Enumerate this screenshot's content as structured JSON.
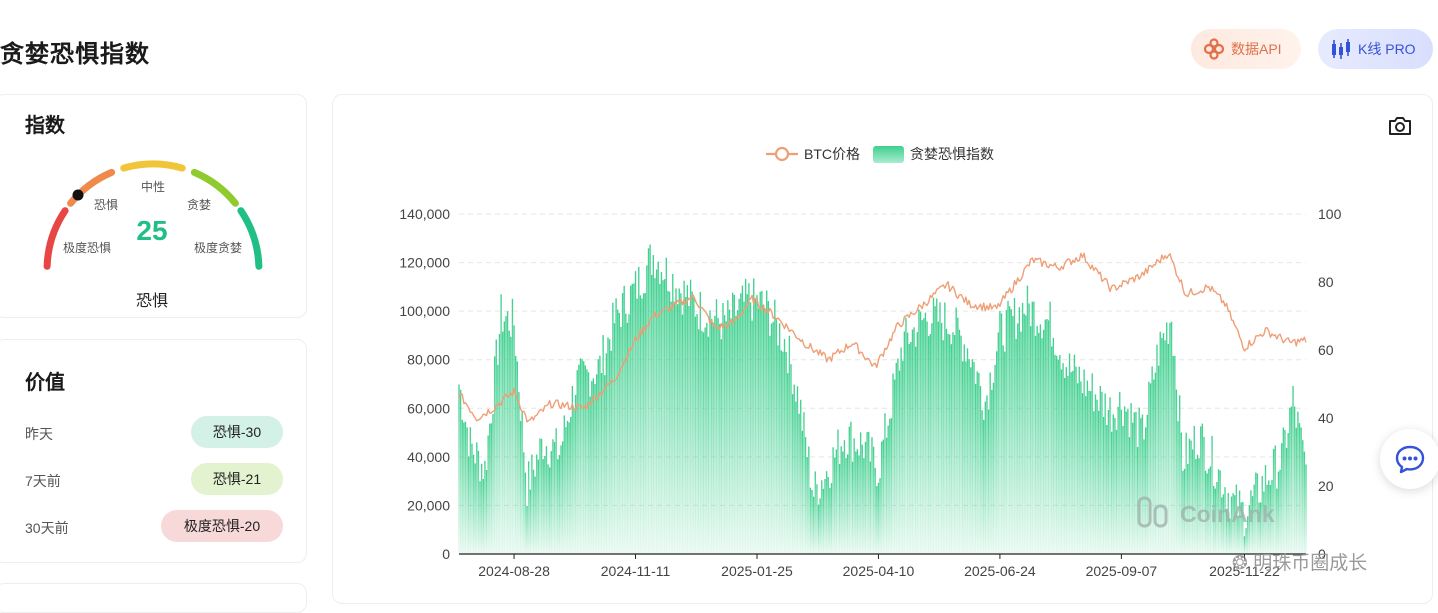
{
  "header": {
    "title": "贪婪恐惧指数",
    "api_button": "数据API",
    "kline_button": "K线 PRO"
  },
  "index_card": {
    "title": "指数",
    "value": "25",
    "status": "恐惧",
    "labels": {
      "extreme_fear": "极度恐惧",
      "fear": "恐惧",
      "neutral": "中性",
      "greed": "贪婪",
      "extreme_greed": "极度贪婪"
    },
    "colors": {
      "extreme_fear": "#e84545",
      "fear": "#ef8a4c",
      "neutral": "#f0c53a",
      "greed": "#8fca2e",
      "extreme_greed": "#1fbf86"
    }
  },
  "value_card": {
    "title": "价值",
    "rows": [
      {
        "label": "昨天",
        "value": "恐惧-30",
        "color": "#d3f1e6"
      },
      {
        "label": "7天前",
        "value": "恐惧-21",
        "color": "#e3f2cf"
      },
      {
        "label": "30天前",
        "value": "极度恐惧-20",
        "color": "#f8d9d9"
      }
    ]
  },
  "chart_data": {
    "type": "bar+line",
    "legend": [
      {
        "name": "BTC价格",
        "color": "#ee9f77"
      },
      {
        "name": "贪婪恐惧指数",
        "color": "#4fd49a"
      }
    ],
    "legend_position": "top-center",
    "grid": "horizontal-dashed",
    "x_ticks": [
      "2024-08-28",
      "2024-11-11",
      "2025-01-25",
      "2025-04-10",
      "2025-06-24",
      "2025-09-07",
      "2025-11-22"
    ],
    "y_left_ticks": [
      "0",
      "20,000",
      "40,000",
      "60,000",
      "80,000",
      "100,000",
      "120,000",
      "140,000"
    ],
    "y_right_ticks": [
      "0",
      "20",
      "40",
      "60",
      "80",
      "100"
    ],
    "y_left_range": [
      0,
      140000
    ],
    "y_right_range": [
      0,
      100
    ],
    "x_range": [
      "2024-07-25",
      "2025-12-30"
    ],
    "fear_greed_anchors": [
      [
        "2024-07-25",
        50
      ],
      [
        "2024-08-01",
        32
      ],
      [
        "2024-08-10",
        25
      ],
      [
        "2024-08-20",
        70
      ],
      [
        "2024-08-28",
        68
      ],
      [
        "2024-09-05",
        20
      ],
      [
        "2024-09-15",
        33
      ],
      [
        "2024-09-25",
        30
      ],
      [
        "2024-10-05",
        50
      ],
      [
        "2024-10-20",
        55
      ],
      [
        "2024-10-30",
        70
      ],
      [
        "2024-11-11",
        78
      ],
      [
        "2024-11-22",
        88
      ],
      [
        "2024-12-05",
        80
      ],
      [
        "2024-12-20",
        72
      ],
      [
        "2025-01-05",
        68
      ],
      [
        "2025-01-20",
        75
      ],
      [
        "2025-01-30",
        73
      ],
      [
        "2025-02-12",
        62
      ],
      [
        "2025-02-20",
        45
      ],
      [
        "2025-03-01",
        18
      ],
      [
        "2025-03-10",
        25
      ],
      [
        "2025-03-20",
        35
      ],
      [
        "2025-04-01",
        32
      ],
      [
        "2025-04-10",
        25
      ],
      [
        "2025-04-25",
        62
      ],
      [
        "2025-05-10",
        70
      ],
      [
        "2025-05-25",
        68
      ],
      [
        "2025-06-05",
        60
      ],
      [
        "2025-06-15",
        45
      ],
      [
        "2025-06-24",
        65
      ],
      [
        "2025-07-10",
        73
      ],
      [
        "2025-07-25",
        68
      ],
      [
        "2025-08-05",
        55
      ],
      [
        "2025-08-20",
        48
      ],
      [
        "2025-09-01",
        42
      ],
      [
        "2025-09-07",
        45
      ],
      [
        "2025-09-20",
        35
      ],
      [
        "2025-09-30",
        60
      ],
      [
        "2025-10-08",
        70
      ],
      [
        "2025-10-15",
        28
      ],
      [
        "2025-10-25",
        35
      ],
      [
        "2025-11-05",
        25
      ],
      [
        "2025-11-15",
        15
      ],
      [
        "2025-11-22",
        12
      ],
      [
        "2025-12-05",
        22
      ],
      [
        "2025-12-15",
        28
      ],
      [
        "2025-12-22",
        45
      ],
      [
        "2025-12-30",
        25
      ]
    ],
    "btc_price_anchors": [
      [
        "2024-07-25",
        66000
      ],
      [
        "2024-08-05",
        56000
      ],
      [
        "2024-08-15",
        60000
      ],
      [
        "2024-08-28",
        67000
      ],
      [
        "2024-09-06",
        54000
      ],
      [
        "2024-09-20",
        62000
      ],
      [
        "2024-10-10",
        60000
      ],
      [
        "2024-10-29",
        72000
      ],
      [
        "2024-11-11",
        88000
      ],
      [
        "2024-11-22",
        98000
      ],
      [
        "2024-12-17",
        106000
      ],
      [
        "2024-12-30",
        93000
      ],
      [
        "2025-01-10",
        95000
      ],
      [
        "2025-01-22",
        105000
      ],
      [
        "2025-02-05",
        98000
      ],
      [
        "2025-02-25",
        86000
      ],
      [
        "2025-03-10",
        80000
      ],
      [
        "2025-03-25",
        87000
      ],
      [
        "2025-04-08",
        77000
      ],
      [
        "2025-04-22",
        94000
      ],
      [
        "2025-05-10",
        104000
      ],
      [
        "2025-05-22",
        111000
      ],
      [
        "2025-06-05",
        103000
      ],
      [
        "2025-06-22",
        101000
      ],
      [
        "2025-07-14",
        121000
      ],
      [
        "2025-07-30",
        118000
      ],
      [
        "2025-08-14",
        123000
      ],
      [
        "2025-09-01",
        109000
      ],
      [
        "2025-09-20",
        115000
      ],
      [
        "2025-10-06",
        124000
      ],
      [
        "2025-10-17",
        107000
      ],
      [
        "2025-10-31",
        110000
      ],
      [
        "2025-11-10",
        103000
      ],
      [
        "2025-11-22",
        85000
      ],
      [
        "2025-12-05",
        92000
      ],
      [
        "2025-12-20",
        87000
      ],
      [
        "2025-12-30",
        88000
      ]
    ]
  },
  "branding": {
    "chart_watermark": "CoinAnk",
    "footer_watermark": "明珠币圈成长"
  }
}
